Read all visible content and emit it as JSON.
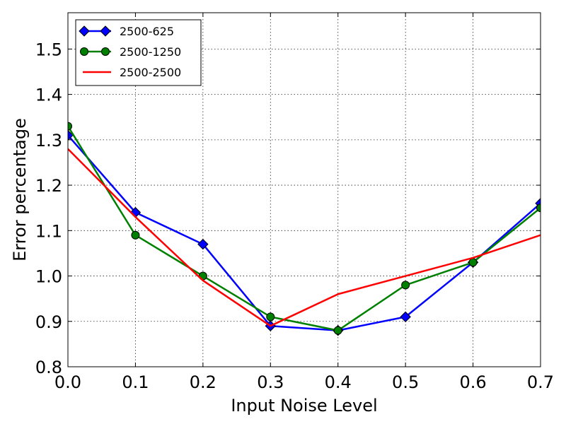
{
  "chart_data": {
    "type": "line",
    "title": "",
    "xlabel": "Input Noise Level",
    "ylabel": "Error percentage",
    "xlim": [
      0.0,
      0.7
    ],
    "ylim": [
      0.8,
      1.58
    ],
    "xticks": [
      0.0,
      0.1,
      0.2,
      0.3,
      0.4,
      0.5,
      0.6,
      0.7
    ],
    "xtick_labels": [
      "0.0",
      "0.1",
      "0.2",
      "0.3",
      "0.4",
      "0.5",
      "0.6",
      "0.7"
    ],
    "yticks": [
      0.8,
      0.9,
      1.0,
      1.1,
      1.2,
      1.3,
      1.4,
      1.5
    ],
    "ytick_labels": [
      "0.8",
      "0.9",
      "1.0",
      "1.1",
      "1.2",
      "1.3",
      "1.4",
      "1.5"
    ],
    "grid": true,
    "legend_position": "top-left",
    "series": [
      {
        "name": "2500-625",
        "color": "#0000ff",
        "marker": "diamond",
        "x": [
          0.0,
          0.1,
          0.2,
          0.3,
          0.4,
          0.5,
          0.6,
          0.7
        ],
        "y": [
          1.31,
          1.14,
          1.07,
          0.89,
          0.88,
          0.91,
          1.03,
          1.16
        ]
      },
      {
        "name": "2500-1250",
        "color": "#008000",
        "marker": "circle",
        "x": [
          0.0,
          0.1,
          0.2,
          0.3,
          0.4,
          0.5,
          0.6,
          0.7
        ],
        "y": [
          1.33,
          1.09,
          1.0,
          0.91,
          0.88,
          0.98,
          1.03,
          1.15
        ]
      },
      {
        "name": "2500-2500",
        "color": "#ff0000",
        "marker": "none",
        "x": [
          0.0,
          0.1,
          0.2,
          0.3,
          0.4,
          0.5,
          0.6,
          0.7
        ],
        "y": [
          1.28,
          1.13,
          0.99,
          0.89,
          0.96,
          1.0,
          1.04,
          1.09
        ]
      }
    ]
  }
}
